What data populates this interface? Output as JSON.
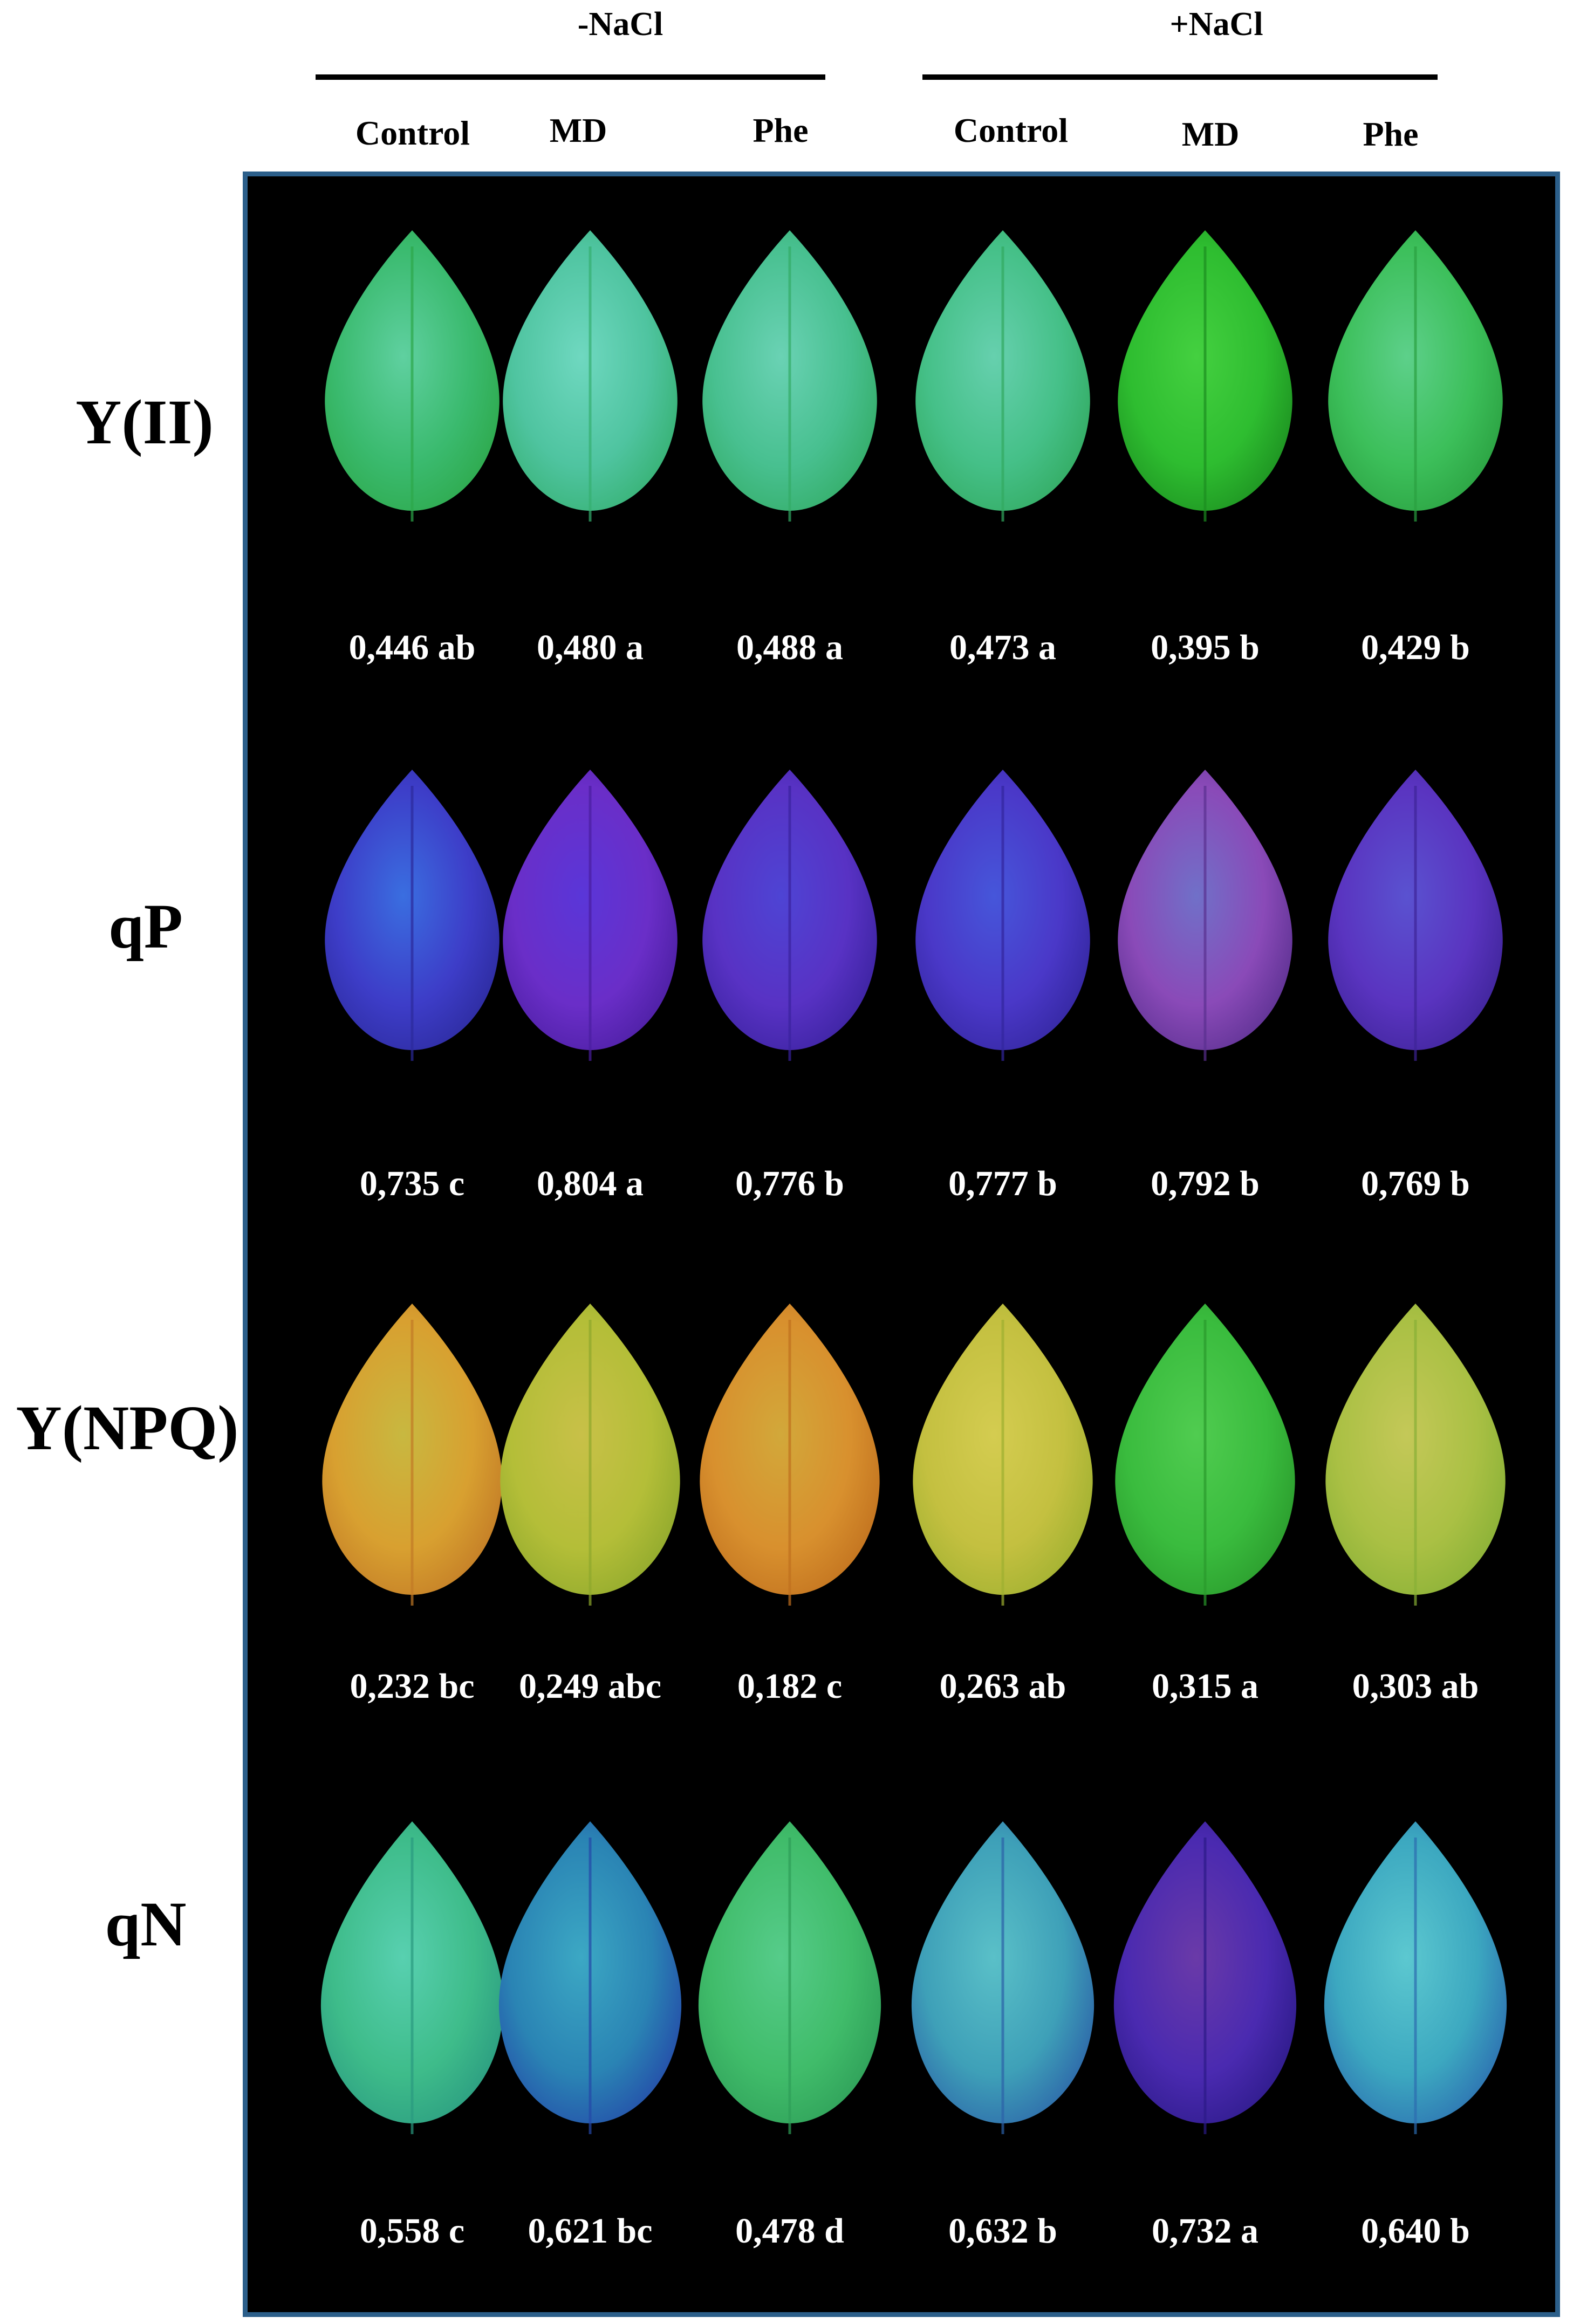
{
  "groups": [
    {
      "label": "-NaCl"
    },
    {
      "label": "+NaCl"
    }
  ],
  "columns": [
    "Control",
    "MD",
    "Phe",
    "Control",
    "MD",
    "Phe"
  ],
  "rows": [
    {
      "label": "Y(II)",
      "values": [
        "0,446 ab",
        "0,480 a",
        "0,488 a",
        "0,473 a",
        "0,395 b",
        "0,429 b"
      ],
      "leaf_colors": [
        [
          "#3aba6e",
          "#5fd0a0",
          "#2da84a"
        ],
        [
          "#4fc4a0",
          "#6fd8c0",
          "#35b070"
        ],
        [
          "#48c090",
          "#6ad2b4",
          "#33ac66"
        ],
        [
          "#45c088",
          "#66d0ae",
          "#32aa60"
        ],
        [
          "#2ebd30",
          "#44d040",
          "#1c8e20"
        ],
        [
          "#3cbf5a",
          "#5dd08a",
          "#2aa040"
        ]
      ]
    },
    {
      "label": "qP",
      "values": [
        "0,735 c",
        "0,804 a",
        "0,776 b",
        "0,777 b",
        "0,792 b",
        "0,769 b"
      ],
      "leaf_colors": [
        [
          "#3d3dc8",
          "#3a6ee0",
          "#2c2a9c"
        ],
        [
          "#6a2ec8",
          "#5a36d8",
          "#4a1ea0"
        ],
        [
          "#5832c4",
          "#4e44d4",
          "#3a229e"
        ],
        [
          "#4a38c8",
          "#4656da",
          "#33269e"
        ],
        [
          "#8a4ab8",
          "#7070c8",
          "#5a3090"
        ],
        [
          "#5a34c0",
          "#5a52d0",
          "#3e2498"
        ]
      ]
    },
    {
      "label": "Y(NPQ)",
      "values": [
        "0,232 bc",
        "0,249 abc",
        "0,182 c",
        "0,263 ab",
        "0,315 a",
        "0,303 ab"
      ],
      "leaf_colors": [
        [
          "#d8a030",
          "#c8b840",
          "#c27a26"
        ],
        [
          "#b4be38",
          "#c8c048",
          "#8ea82c"
        ],
        [
          "#d8902e",
          "#d2a83a",
          "#c0701e"
        ],
        [
          "#c4c040",
          "#d4cc50",
          "#9eb030"
        ],
        [
          "#3abc3e",
          "#50cc50",
          "#2a9a2c"
        ],
        [
          "#aac044",
          "#c4c858",
          "#88b036"
        ]
      ]
    },
    {
      "label": "qN",
      "values": [
        "0,558 c",
        "0,621 bc",
        "0,478 d",
        "0,632 b",
        "0,732 a",
        "0,640 b"
      ],
      "leaf_colors": [
        [
          "#3ebc8a",
          "#58d0b0",
          "#2a9a80"
        ],
        [
          "#2a84b4",
          "#3ca8c4",
          "#2448a8"
        ],
        [
          "#40bc6a",
          "#56cc8a",
          "#2e9e58"
        ],
        [
          "#3ea0b8",
          "#5ac0c8",
          "#2c62a8"
        ],
        [
          "#4a2ab0",
          "#6a3aa8",
          "#2c1a88"
        ],
        [
          "#3ca8c0",
          "#5cc8d0",
          "#2c6cb0"
        ]
      ]
    }
  ]
}
